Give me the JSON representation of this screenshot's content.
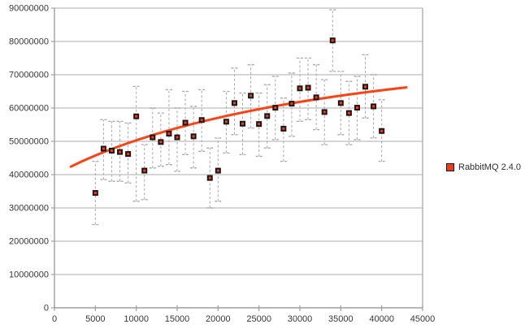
{
  "chart_data": {
    "type": "scatter",
    "title": "",
    "xlabel": "",
    "ylabel": "",
    "xlim": [
      0,
      45000
    ],
    "ylim": [
      0,
      90000000
    ],
    "x_ticks": [
      0,
      5000,
      10000,
      15000,
      20000,
      25000,
      30000,
      35000,
      40000,
      45000
    ],
    "y_ticks": [
      0,
      10000000,
      20000000,
      30000000,
      40000000,
      50000000,
      60000000,
      70000000,
      80000000,
      90000000
    ],
    "grid": "horizontal",
    "legend_position": "right",
    "colors": {
      "background": "#ffffff",
      "grid": "#c9c9c9",
      "axis": "#9f9f9f",
      "tick_label": "#383838",
      "error_bar": "#a8a8a8",
      "trend": "#ff4214",
      "marker_outer": "#171717",
      "marker_inner": "#ff3a10",
      "legend_swatch": "#e8401c"
    },
    "series": [
      {
        "name": "RabbitMQ 2.4.0",
        "marker": "square",
        "points": [
          {
            "x": 5000,
            "y": 34500000,
            "lo": 25000000,
            "hi": 44000000
          },
          {
            "x": 6000,
            "y": 47800000,
            "lo": 38500000,
            "hi": 56500000
          },
          {
            "x": 7000,
            "y": 47200000,
            "lo": 38000000,
            "hi": 56000000
          },
          {
            "x": 8000,
            "y": 46800000,
            "lo": 38000000,
            "hi": 56000000
          },
          {
            "x": 9000,
            "y": 46200000,
            "lo": 37500000,
            "hi": 55500000
          },
          {
            "x": 10000,
            "y": 57500000,
            "lo": 32000000,
            "hi": 66500000
          },
          {
            "x": 11000,
            "y": 41200000,
            "lo": 32500000,
            "hi": 49000000
          },
          {
            "x": 12000,
            "y": 51200000,
            "lo": 42000000,
            "hi": 60000000
          },
          {
            "x": 13000,
            "y": 49800000,
            "lo": 42500000,
            "hi": 58500000
          },
          {
            "x": 14000,
            "y": 52300000,
            "lo": 43000000,
            "hi": 65500000
          },
          {
            "x": 15000,
            "y": 51200000,
            "lo": 41000000,
            "hi": 60000000
          },
          {
            "x": 16000,
            "y": 55600000,
            "lo": 46000000,
            "hi": 65000000
          },
          {
            "x": 17000,
            "y": 51500000,
            "lo": 42000000,
            "hi": 60500000
          },
          {
            "x": 18000,
            "y": 56400000,
            "lo": 47000000,
            "hi": 65500000
          },
          {
            "x": 19000,
            "y": 39000000,
            "lo": 30000000,
            "hi": 48000000
          },
          {
            "x": 20000,
            "y": 41200000,
            "lo": 32000000,
            "hi": 51000000
          },
          {
            "x": 21000,
            "y": 55900000,
            "lo": 46500000,
            "hi": 65000000
          },
          {
            "x": 22000,
            "y": 61500000,
            "lo": 52000000,
            "hi": 72000000
          },
          {
            "x": 23000,
            "y": 55300000,
            "lo": 46000000,
            "hi": 64500000
          },
          {
            "x": 24000,
            "y": 63700000,
            "lo": 54000000,
            "hi": 73000000
          },
          {
            "x": 25000,
            "y": 55200000,
            "lo": 45500000,
            "hi": 64500000
          },
          {
            "x": 26000,
            "y": 57600000,
            "lo": 48000000,
            "hi": 67000000
          },
          {
            "x": 27000,
            "y": 60100000,
            "lo": 50500000,
            "hi": 69500000
          },
          {
            "x": 28000,
            "y": 53800000,
            "lo": 44000000,
            "hi": 63000000
          },
          {
            "x": 29000,
            "y": 61300000,
            "lo": 51500000,
            "hi": 70500000
          },
          {
            "x": 30000,
            "y": 65900000,
            "lo": 56000000,
            "hi": 75000000
          },
          {
            "x": 31000,
            "y": 66100000,
            "lo": 56500000,
            "hi": 75000000
          },
          {
            "x": 32000,
            "y": 63200000,
            "lo": 53500000,
            "hi": 73000000
          },
          {
            "x": 33000,
            "y": 58800000,
            "lo": 49000000,
            "hi": 68500000
          },
          {
            "x": 34000,
            "y": 80300000,
            "lo": 71000000,
            "hi": 89500000
          },
          {
            "x": 35000,
            "y": 61500000,
            "lo": 52000000,
            "hi": 71000000
          },
          {
            "x": 36000,
            "y": 58500000,
            "lo": 49000000,
            "hi": 68000000
          },
          {
            "x": 37000,
            "y": 60100000,
            "lo": 50500000,
            "hi": 69500000
          },
          {
            "x": 38000,
            "y": 66400000,
            "lo": 57000000,
            "hi": 76000000
          },
          {
            "x": 39000,
            "y": 60500000,
            "lo": 51000000,
            "hi": 70000000
          },
          {
            "x": 40000,
            "y": 53100000,
            "lo": 44000000,
            "hi": 62500000
          }
        ]
      }
    ],
    "trend": {
      "type": "quadratic-bezier",
      "control_points": [
        [
          2000,
          42400000
        ],
        [
          15500,
          58700000
        ],
        [
          43000,
          66200000
        ]
      ]
    }
  }
}
